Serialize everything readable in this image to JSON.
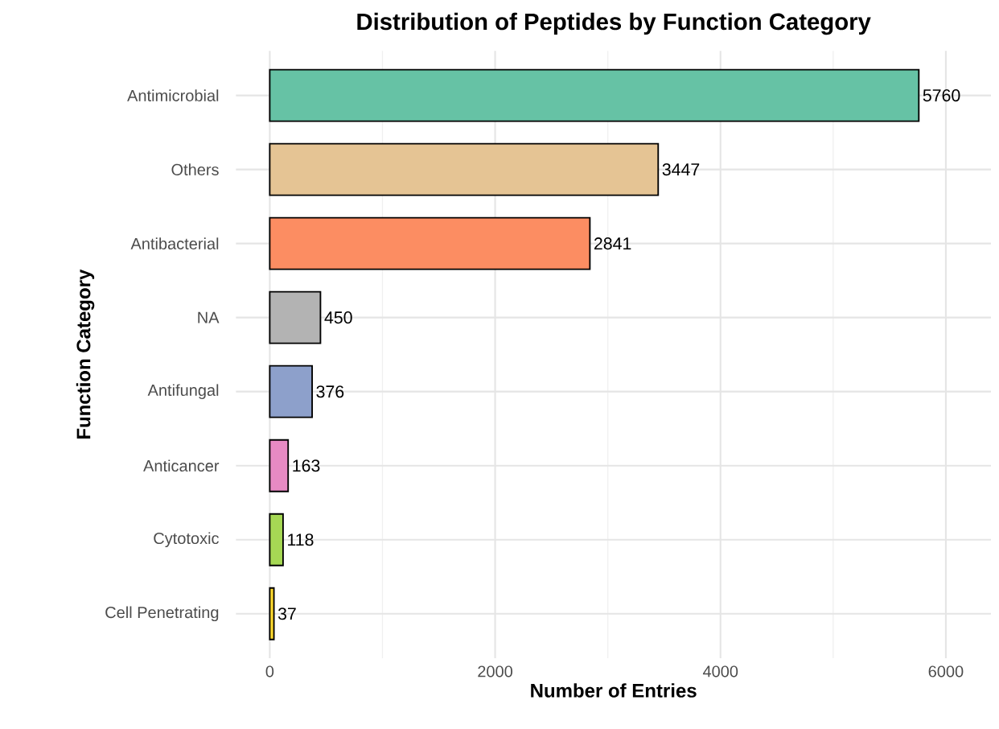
{
  "chart_data": {
    "type": "bar",
    "orientation": "horizontal",
    "title": "Distribution of Peptides by Function Category",
    "xlabel": "Number of Entries",
    "ylabel": "Function Category",
    "categories": [
      "Antimicrobial",
      "Others",
      "Antibacterial",
      "NA",
      "Antifungal",
      "Anticancer",
      "Cytotoxic",
      "Cell Penetrating"
    ],
    "values": [
      5760,
      3447,
      2841,
      450,
      376,
      163,
      118,
      37
    ],
    "colors": [
      "#66c2a5",
      "#e5c494",
      "#fc8d62",
      "#b3b3b3",
      "#8da0cb",
      "#e78ac3",
      "#a6d854",
      "#ffd92f"
    ],
    "xlim": [
      -300,
      6400
    ],
    "xticks": [
      0,
      2000,
      4000,
      6000
    ],
    "grid": true,
    "data_labels": true
  }
}
